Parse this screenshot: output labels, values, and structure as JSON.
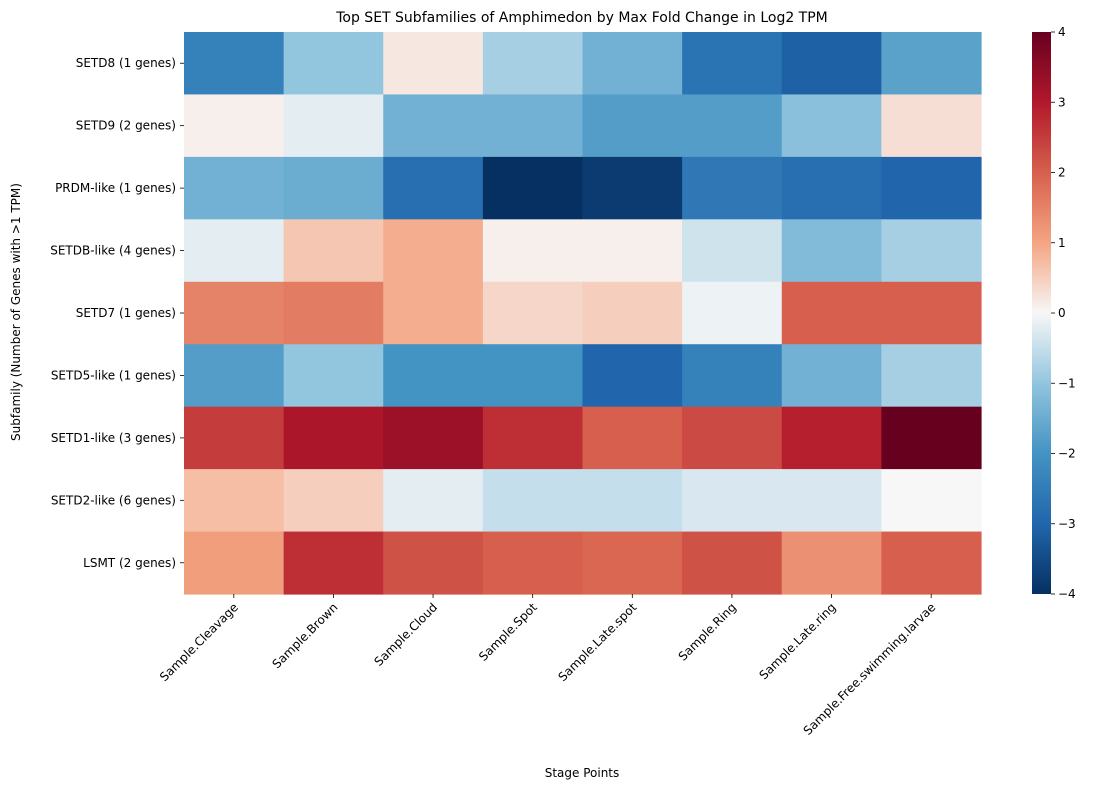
{
  "chart_data": {
    "type": "heatmap",
    "title": "Top SET Subfamilies of Amphimedon by Max Fold Change in Log2 TPM",
    "xlabel": "Stage Points",
    "ylabel": "Subfamily (Number of Genes with >1 TPM)",
    "x_categories": [
      "Sample.Cleavage",
      "Sample.Brown",
      "Sample.Cloud",
      "Sample.Spot",
      "Sample.Late.spot",
      "Sample.Ring",
      "Sample.Late.ring",
      "Sample.Free.swimming.larvae"
    ],
    "y_categories": [
      "SETD8 (1 genes)",
      "SETD9 (2 genes)",
      "PRDM-like (1 genes)",
      "SETDB-like (4 genes)",
      "SETD7 (1 genes)",
      "SETD5-like (1 genes)",
      "SETD1-like (3 genes)",
      "SETD2-like (6 genes)",
      "LSMT (2 genes)"
    ],
    "values": [
      [
        -2.4,
        -1.0,
        0.2,
        -0.8,
        -1.4,
        -2.7,
        -3.1,
        -1.7
      ],
      [
        0.1,
        -0.2,
        -1.4,
        -1.4,
        -1.8,
        -1.8,
        -1.1,
        0.3
      ],
      [
        -1.4,
        -1.5,
        -2.8,
        -4.0,
        -3.8,
        -2.6,
        -2.8,
        -3.0
      ],
      [
        -0.2,
        0.6,
        0.9,
        0.1,
        0.1,
        -0.4,
        -1.2,
        -0.8
      ],
      [
        1.5,
        1.6,
        0.9,
        0.4,
        0.5,
        -0.1,
        2.0,
        2.0
      ],
      [
        -1.8,
        -1.0,
        -2.0,
        -2.0,
        -3.0,
        -2.4,
        -1.4,
        -0.8
      ],
      [
        2.5,
        3.1,
        3.3,
        2.7,
        2.0,
        2.3,
        2.9,
        4.0
      ],
      [
        0.7,
        0.5,
        -0.2,
        -0.5,
        -0.5,
        -0.3,
        -0.3,
        0.0
      ],
      [
        1.1,
        2.7,
        2.2,
        2.0,
        1.9,
        2.2,
        1.3,
        2.0
      ]
    ],
    "vmin": -4,
    "vmax": 4,
    "colormap": "RdBu_r",
    "colorbar_ticks": [
      "−4",
      "−3",
      "−2",
      "−1",
      "0",
      "1",
      "2",
      "3",
      "4"
    ]
  }
}
